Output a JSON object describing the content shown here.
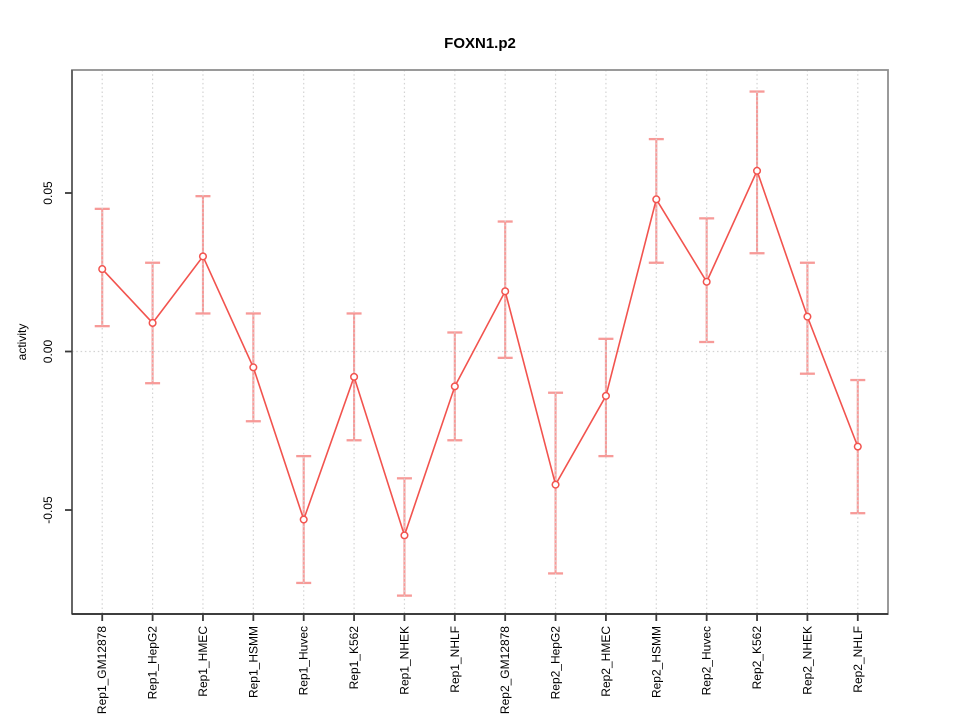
{
  "window": {
    "background": "#ffffff"
  },
  "chart_data": {
    "type": "line",
    "title": "FOXN1.p2",
    "xlabel": "",
    "ylabel": "activity",
    "legend": "none",
    "grid": {
      "vertical": "dotted line at every category",
      "horizontal": "dotted line at y = 0 only"
    },
    "categories": [
      "Rep1_GM12878",
      "Rep1_HepG2",
      "Rep1_HMEC",
      "Rep1_HSMM",
      "Rep1_Huvec",
      "Rep1_K562",
      "Rep1_NHEK",
      "Rep1_NHLF",
      "Rep2_GM12878",
      "Rep2_HepG2",
      "Rep2_HMEC",
      "Rep2_HSMM",
      "Rep2_Huvec",
      "Rep2_K562",
      "Rep2_NHEK",
      "Rep2_NHLF"
    ],
    "series": [
      {
        "name": "activity",
        "values": [
          0.026,
          0.009,
          0.03,
          -0.005,
          -0.053,
          -0.008,
          -0.058,
          -0.011,
          0.019,
          -0.042,
          -0.014,
          0.048,
          0.022,
          0.057,
          0.011,
          -0.03
        ],
        "error_low": [
          0.008,
          -0.01,
          0.012,
          -0.022,
          -0.073,
          -0.028,
          -0.077,
          -0.028,
          -0.002,
          -0.07,
          -0.033,
          0.028,
          0.003,
          0.031,
          -0.007,
          -0.051
        ],
        "error_high": [
          0.045,
          0.028,
          0.049,
          0.012,
          -0.033,
          0.012,
          -0.04,
          0.006,
          0.041,
          -0.013,
          0.004,
          0.067,
          0.042,
          0.082,
          0.028,
          -0.009
        ]
      }
    ],
    "yticks": {
      "values": [
        0.05,
        0.0,
        -0.05
      ],
      "labels": [
        "0.05",
        "0.00",
        "-0.05"
      ]
    },
    "ylim": [
      -0.0828,
      0.0888
    ],
    "marker": "open-circle",
    "colors": {
      "series": "#f2534e",
      "error_bars": "#f79a98",
      "grid": "#d3d3d3",
      "frame": "#8f8f8f",
      "axis_left": "#5f5f5f",
      "axis_bottom": "#2f2f2f",
      "ticks": "#3a3a3a",
      "text": "#000000"
    }
  }
}
